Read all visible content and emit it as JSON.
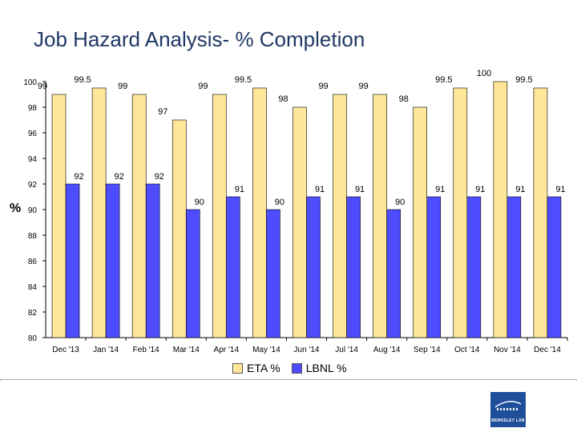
{
  "slide": {
    "title": "Job Hazard Analysis- % Completion"
  },
  "colors": {
    "eta": "#FFE699",
    "lbnl": "#4D4DFF",
    "bar_edge": "#000000",
    "title": "#1f3864",
    "logo_bg": "#1f4e9a"
  },
  "logo": {
    "text": "BERKELEY LAB"
  },
  "chart_data": {
    "type": "bar",
    "title": "Job Hazard Analysis- % Completion",
    "ylabel": "%",
    "xlabel": "",
    "ylim": [
      80,
      100
    ],
    "yticks": [
      80,
      82,
      84,
      86,
      88,
      90,
      92,
      94,
      96,
      98,
      100
    ],
    "grid": false,
    "legend_position": "bottom",
    "categories": [
      "Dec '13",
      "Jan '14",
      "Feb '14",
      "Mar '14",
      "Apr '14",
      "May '14",
      "Jun '14",
      "Jul '14",
      "Aug '14",
      "Sep '14",
      "Oct '14",
      "Nov '14",
      "Dec '14"
    ],
    "series": [
      {
        "name": "ETA %",
        "values": [
          99,
          99.5,
          99,
          97,
          99,
          99.5,
          98,
          99,
          99,
          98,
          99.5,
          100,
          99.5
        ]
      },
      {
        "name": "LBNL %",
        "values": [
          92,
          92,
          92,
          90,
          91,
          90,
          91,
          91,
          90,
          91,
          91,
          91,
          91
        ]
      }
    ]
  }
}
